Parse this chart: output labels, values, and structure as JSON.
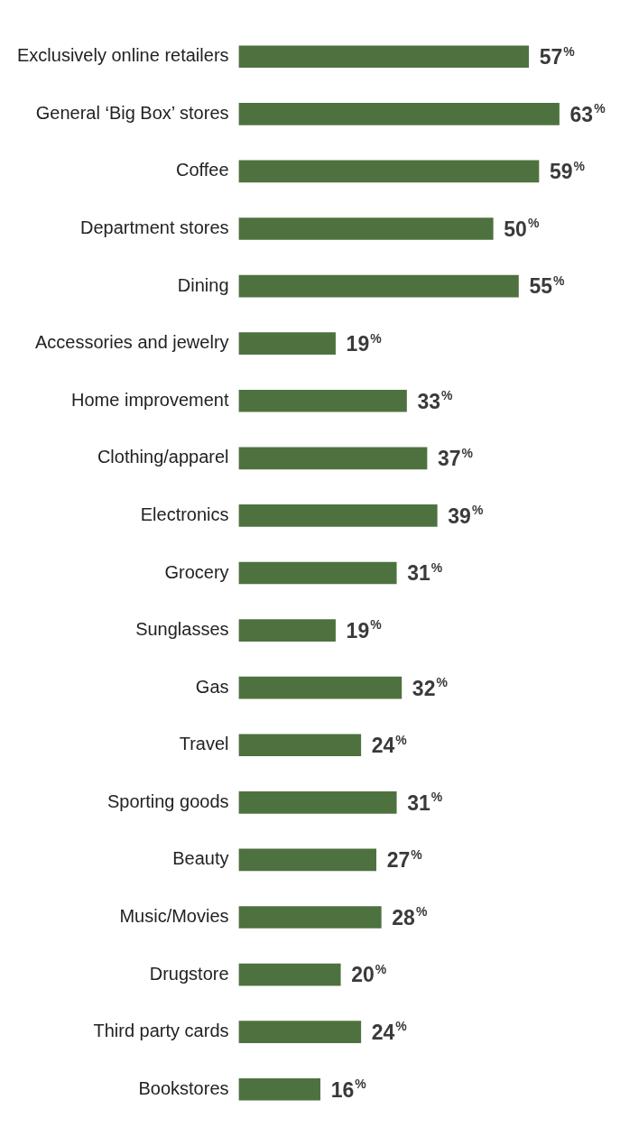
{
  "chart_data": {
    "type": "bar",
    "orientation": "horizontal",
    "categories": [
      "Exclusively online retailers",
      "General ‘Big Box’ stores",
      "Coffee",
      "Department stores",
      "Dining",
      "Accessories and jewelry",
      "Home improvement",
      "Clothing/apparel",
      "Electronics",
      "Grocery",
      "Sunglasses",
      "Gas",
      "Travel",
      "Sporting goods",
      "Beauty",
      "Music/Movies",
      "Drugstore",
      "Third party cards",
      "Bookstores"
    ],
    "values": [
      57,
      63,
      59,
      50,
      55,
      19,
      33,
      37,
      39,
      31,
      19,
      32,
      24,
      31,
      27,
      28,
      20,
      24,
      16
    ],
    "value_labels": [
      "57%",
      "63%",
      "59%",
      "50%",
      "55%",
      "19%",
      "33%",
      "37%",
      "39%",
      "31%",
      "19%",
      "32%",
      "24%",
      "31%",
      "27%",
      "28%",
      "20%",
      "24%",
      "16%"
    ],
    "color": "#4e723f",
    "grid": false,
    "legend": false,
    "tick_labels": "y"
  }
}
